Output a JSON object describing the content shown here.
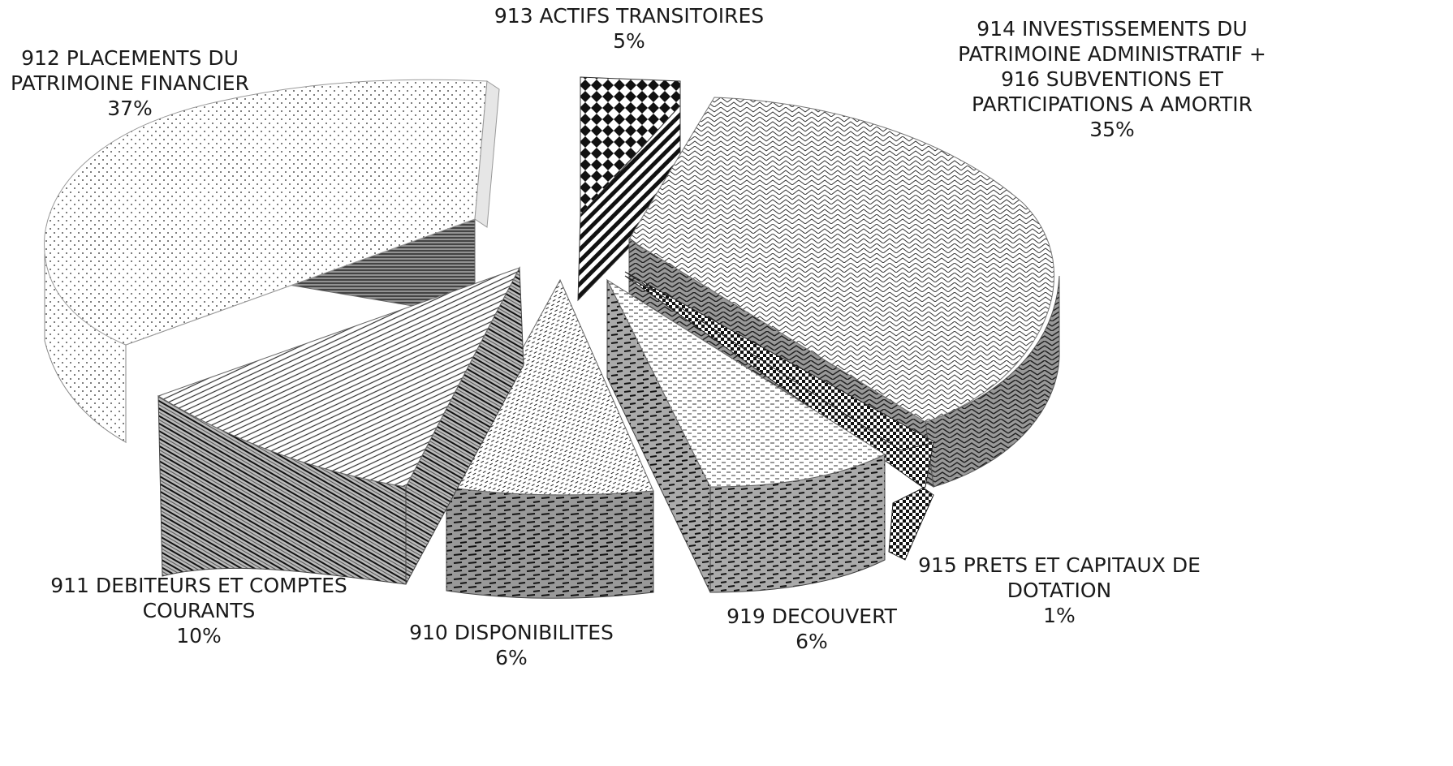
{
  "chart_data": {
    "type": "pie",
    "style": "3d-exploded",
    "title": "",
    "slices": [
      {
        "key": "s913",
        "name": "913 ACTIFS TRANSITOIRES",
        "value": 5,
        "pct_label": "5%"
      },
      {
        "key": "s914",
        "name": "914 INVESTISSEMENTS DU PATRIMOINE ADMINISTRATIF + 916 SUBVENTIONS ET PARTICIPATIONS A AMORTIR",
        "value": 35,
        "pct_label": "35%"
      },
      {
        "key": "s915",
        "name": "915 PRETS ET CAPITAUX DE DOTATION",
        "value": 1,
        "pct_label": "1%"
      },
      {
        "key": "s919",
        "name": "919 DECOUVERT",
        "value": 6,
        "pct_label": "6%"
      },
      {
        "key": "s910",
        "name": "910 DISPONIBILITES",
        "value": 6,
        "pct_label": "6%"
      },
      {
        "key": "s911",
        "name": "911 DEBITEURS ET COMPTES COURANTS",
        "value": 10,
        "pct_label": "10%"
      },
      {
        "key": "s912",
        "name": "912 PLACEMENTS DU PATRIMOINE FINANCIER",
        "value": 37,
        "pct_label": "37%"
      }
    ],
    "labels": {
      "s913": {
        "lines": [
          "913 ACTIFS TRANSITOIRES",
          "5%"
        ]
      },
      "s914": {
        "lines": [
          "914 INVESTISSEMENTS DU",
          "PATRIMOINE ADMINISTRATIF +",
          "916 SUBVENTIONS ET",
          "PARTICIPATIONS A AMORTIR",
          "35%"
        ]
      },
      "s915": {
        "lines": [
          "915 PRETS ET CAPITAUX DE",
          "DOTATION",
          "1%"
        ]
      },
      "s919": {
        "lines": [
          "919 DECOUVERT",
          "6%"
        ]
      },
      "s910": {
        "lines": [
          "910 DISPONIBILITES",
          "6%"
        ]
      },
      "s911": {
        "lines": [
          "911 DEBITEURS ET COMPTES",
          "COURANTS",
          "10%"
        ]
      },
      "s912": {
        "lines": [
          "912 PLACEMENTS DU",
          "PATRIMOINE FINANCIER",
          "37%"
        ]
      }
    },
    "legend": "none",
    "colors": {
      "ink": "#1a1a1a",
      "fill": "#ffffff"
    }
  }
}
